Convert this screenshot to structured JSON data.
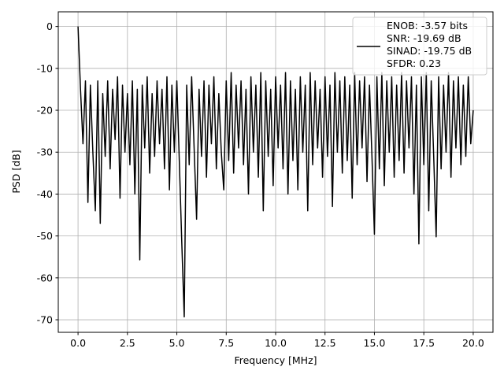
{
  "chart_data": {
    "type": "line",
    "xlabel": "Frequency [MHz]",
    "ylabel": "PSD [dB]",
    "x": [
      0,
      0.125,
      0.25,
      0.375,
      0.5,
      0.625,
      0.75,
      0.875,
      1,
      1.125,
      1.25,
      1.375,
      1.5,
      1.625,
      1.75,
      1.875,
      2,
      2.125,
      2.25,
      2.375,
      2.5,
      2.625,
      2.75,
      2.875,
      3,
      3.125,
      3.25,
      3.375,
      3.5,
      3.625,
      3.75,
      3.875,
      4,
      4.125,
      4.25,
      4.375,
      4.5,
      4.625,
      4.75,
      4.875,
      5,
      5.125,
      5.25,
      5.375,
      5.5,
      5.625,
      5.75,
      5.875,
      6,
      6.125,
      6.25,
      6.375,
      6.5,
      6.625,
      6.75,
      6.875,
      7,
      7.125,
      7.25,
      7.375,
      7.5,
      7.625,
      7.75,
      7.875,
      8,
      8.125,
      8.25,
      8.375,
      8.5,
      8.625,
      8.75,
      8.875,
      9,
      9.125,
      9.25,
      9.375,
      9.5,
      9.625,
      9.75,
      9.875,
      10,
      10.125,
      10.25,
      10.375,
      10.5,
      10.625,
      10.75,
      10.875,
      11,
      11.125,
      11.25,
      11.375,
      11.5,
      11.625,
      11.75,
      11.875,
      12,
      12.125,
      12.25,
      12.375,
      12.5,
      12.625,
      12.75,
      12.875,
      13,
      13.125,
      13.25,
      13.375,
      13.5,
      13.625,
      13.75,
      13.875,
      14,
      14.125,
      14.25,
      14.375,
      14.5,
      14.625,
      14.75,
      14.875,
      15,
      15.125,
      15.25,
      15.375,
      15.5,
      15.625,
      15.75,
      15.875,
      16,
      16.125,
      16.25,
      16.375,
      16.5,
      16.625,
      16.75,
      16.875,
      17,
      17.125,
      17.25,
      17.375,
      17.5,
      17.625,
      17.75,
      17.875,
      18,
      18.125,
      18.25,
      18.375,
      18.5,
      18.625,
      18.75,
      18.875,
      19,
      19.125,
      19.25,
      19.375,
      19.5,
      19.625,
      19.75,
      19.875,
      20
    ],
    "series": [
      {
        "name": "ENOB: -3.57 bits\nSNR: -19.69 dB\nSINAD: -19.75 dB\nSFDR: 0.23",
        "color": "#000000",
        "values": [
          0,
          -15,
          -28,
          -13,
          -42,
          -14,
          -30,
          -44,
          -13,
          -47,
          -16,
          -31,
          -13,
          -34,
          -15,
          -27,
          -12,
          -41,
          -14,
          -30,
          -16,
          -33,
          -13,
          -40,
          -15,
          -55.7,
          -14,
          -29,
          -12,
          -35,
          -16,
          -31,
          -13,
          -28,
          -15,
          -34,
          -12,
          -39,
          -14,
          -30,
          -13,
          -32,
          -51.5,
          -69.3,
          -14,
          -33,
          -12,
          -29,
          -46,
          -15,
          -31,
          -13,
          -36,
          -14,
          -28,
          -12,
          -34,
          -16,
          -30,
          -39,
          -13,
          -32,
          -11,
          -35,
          -14,
          -29,
          -13,
          -33,
          -15,
          -40,
          -12,
          -30,
          -14,
          -36,
          -11,
          -44,
          -13,
          -31,
          -15,
          -38,
          -12,
          -29,
          -14,
          -34,
          -11,
          -40,
          -13,
          -32,
          -15,
          -39,
          -12,
          -30,
          -14,
          -44,
          -11,
          -33,
          -13,
          -29,
          -15,
          -36,
          -12,
          -31,
          -14,
          -43,
          -11,
          -30,
          -13,
          -35,
          -12,
          -32,
          -14,
          -41,
          -11,
          -33,
          -13,
          -29,
          -12,
          -37,
          -14,
          -31,
          -49.6,
          -12,
          -34,
          -11,
          -38,
          -13,
          -30,
          -12,
          -36,
          -14,
          -32,
          -11,
          -35,
          -13,
          -29,
          -12,
          -40,
          -14,
          -51.9,
          -12,
          -33,
          -11,
          -44,
          -13,
          -31,
          -50.2,
          -12,
          -34,
          -14,
          -30,
          -11,
          -36,
          -13,
          -29,
          -12,
          -33,
          -14,
          -31,
          -12,
          -28,
          -20
        ]
      }
    ],
    "xlim": [
      -1.0,
      21.0
    ],
    "ylim": [
      -73.0,
      3.5
    ],
    "xticks": [
      {
        "value": 0,
        "label": "0.0"
      },
      {
        "value": 2.5,
        "label": "2.5"
      },
      {
        "value": 5,
        "label": "5.0"
      },
      {
        "value": 7.5,
        "label": "7.5"
      },
      {
        "value": 10,
        "label": "10.0"
      },
      {
        "value": 12.5,
        "label": "12.5"
      },
      {
        "value": 15,
        "label": "15.0"
      },
      {
        "value": 17.5,
        "label": "17.5"
      },
      {
        "value": 20,
        "label": "20.0"
      }
    ],
    "yticks": [
      0,
      -10,
      -20,
      -30,
      -40,
      -50,
      -60,
      -70
    ],
    "grid": true,
    "legend": "upper right"
  }
}
